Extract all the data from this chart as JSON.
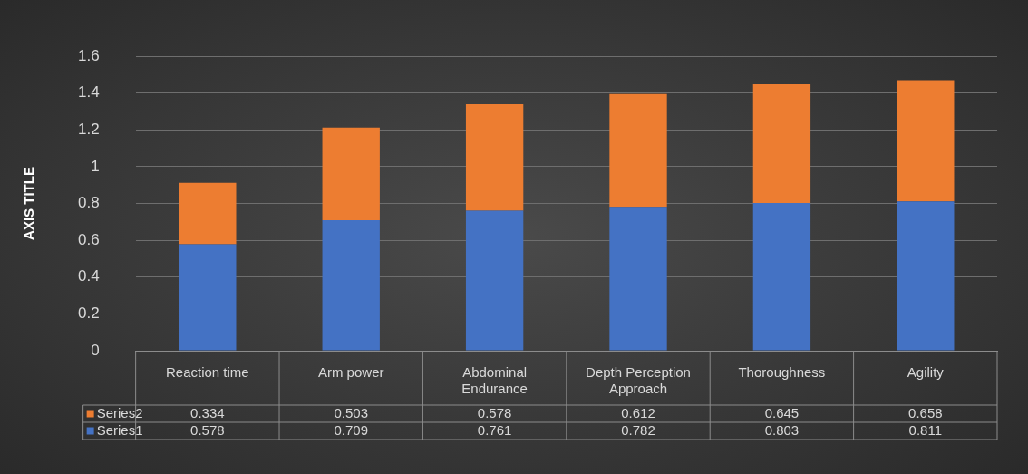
{
  "chart_data": {
    "type": "bar",
    "stacked": true,
    "ylabel": "AXIS TITLE",
    "categories": [
      "Reaction time",
      "Arm power",
      "Abdominal Endurance",
      "Depth Perception Approach",
      "Thoroughness",
      "Agility"
    ],
    "series": [
      {
        "name": "Series1",
        "color": "#4472c4",
        "values": [
          0.578,
          0.709,
          0.761,
          0.782,
          0.803,
          0.811
        ]
      },
      {
        "name": "Series2",
        "color": "#ed7d31",
        "values": [
          0.334,
          0.503,
          0.578,
          0.612,
          0.645,
          0.658
        ]
      }
    ],
    "ylim": [
      0,
      1.6
    ],
    "yticks": [
      0,
      0.2,
      0.4,
      0.6,
      0.8,
      1,
      1.2,
      1.4,
      1.6
    ],
    "grid": "y",
    "legend": "bottom",
    "data_labels": true
  }
}
